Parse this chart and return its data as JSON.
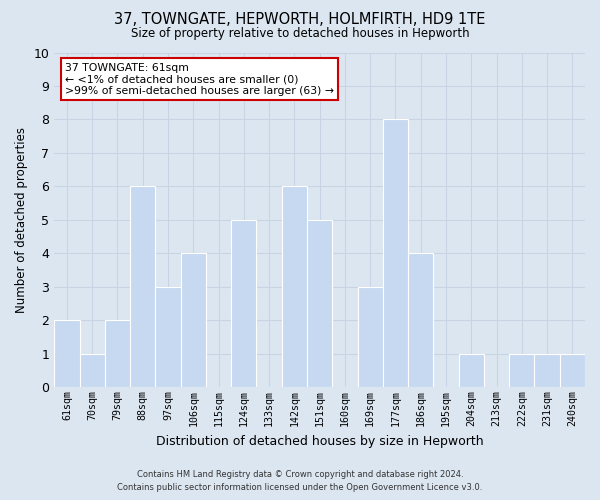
{
  "title": "37, TOWNGATE, HEPWORTH, HOLMFIRTH, HD9 1TE",
  "subtitle": "Size of property relative to detached houses in Hepworth",
  "xlabel": "Distribution of detached houses by size in Hepworth",
  "ylabel": "Number of detached properties",
  "categories": [
    "61sqm",
    "70sqm",
    "79sqm",
    "88sqm",
    "97sqm",
    "106sqm",
    "115sqm",
    "124sqm",
    "133sqm",
    "142sqm",
    "151sqm",
    "160sqm",
    "169sqm",
    "177sqm",
    "186sqm",
    "195sqm",
    "204sqm",
    "213sqm",
    "222sqm",
    "231sqm",
    "240sqm"
  ],
  "values": [
    2,
    1,
    2,
    6,
    3,
    4,
    0,
    5,
    0,
    6,
    5,
    0,
    3,
    8,
    4,
    0,
    1,
    0,
    1,
    1,
    1
  ],
  "bar_color": "#c6d9f1",
  "bar_edge_color": "#ffffff",
  "grid_color": "#c8d4e3",
  "background_color": "#dce6f1",
  "ylim": [
    0,
    10
  ],
  "yticks": [
    0,
    1,
    2,
    3,
    4,
    5,
    6,
    7,
    8,
    9,
    10
  ],
  "annotation_title": "37 TOWNGATE: 61sqm",
  "annotation_line1": "← <1% of detached houses are smaller (0)",
  "annotation_line2": ">99% of semi-detached houses are larger (63) →",
  "annotation_box_color": "#ffffff",
  "annotation_box_edge": "#cc0000",
  "footer_line1": "Contains HM Land Registry data © Crown copyright and database right 2024.",
  "footer_line2": "Contains public sector information licensed under the Open Government Licence v3.0."
}
